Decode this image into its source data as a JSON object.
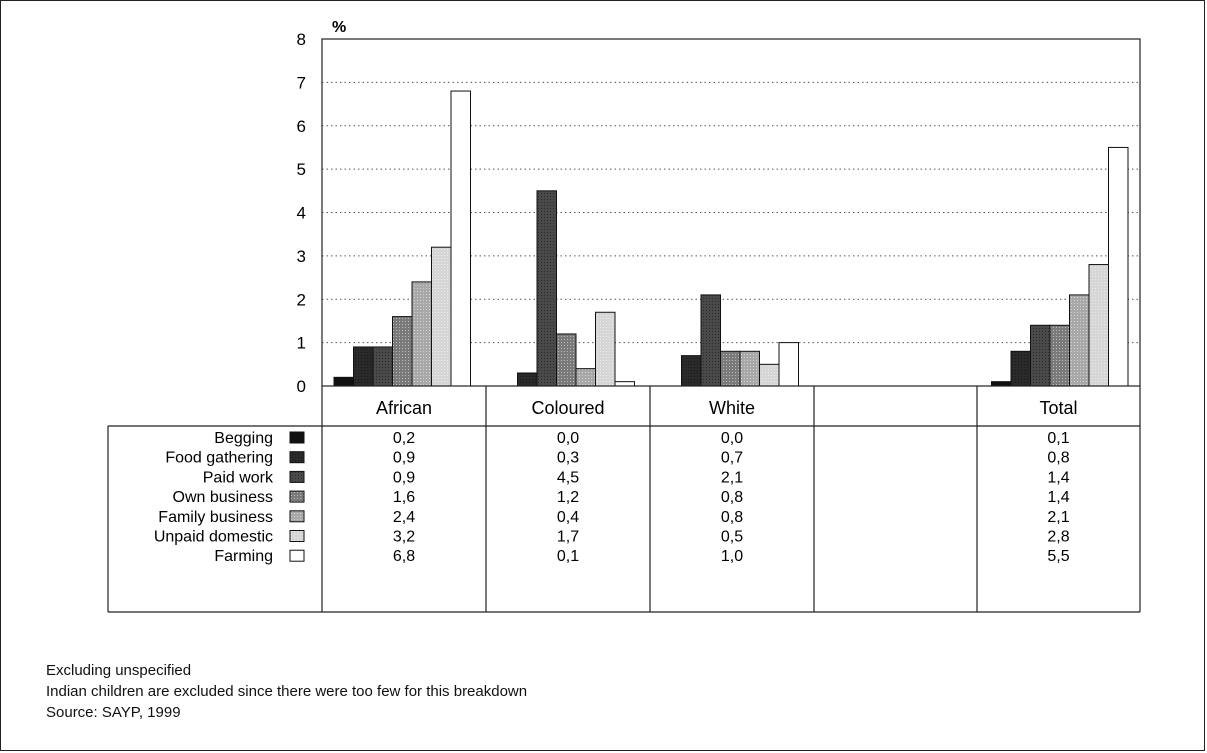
{
  "chart_data": {
    "type": "bar",
    "ylabel": "%",
    "ylim": [
      0,
      8
    ],
    "yticks": [
      "0",
      "1",
      "2",
      "3",
      "4",
      "5",
      "6",
      "7",
      "8"
    ],
    "grid": "horizontal dotted",
    "categories": [
      "African",
      "Coloured",
      "White",
      "",
      "Total"
    ],
    "series": [
      {
        "name": "Begging",
        "color": "#111111",
        "values": [
          0.2,
          0.0,
          0.0,
          null,
          0.1
        ],
        "labels": [
          "0,2",
          "0,0",
          "0,0",
          "",
          "0,1"
        ]
      },
      {
        "name": "Food gathering",
        "color": "#2a2a2a",
        "values": [
          0.9,
          0.3,
          0.7,
          null,
          0.8
        ],
        "labels": [
          "0,9",
          "0,3",
          "0,7",
          "",
          "0,8"
        ]
      },
      {
        "name": "Paid work",
        "color": "#4a4a4a",
        "values": [
          0.9,
          4.5,
          2.1,
          null,
          1.4
        ],
        "labels": [
          "0,9",
          "4,5",
          "2,1",
          "",
          "1,4"
        ]
      },
      {
        "name": "Own business",
        "color": "#7a7a7a",
        "values": [
          1.6,
          1.2,
          0.8,
          null,
          1.4
        ],
        "labels": [
          "1,6",
          "1,2",
          "0,8",
          "",
          "1,4"
        ]
      },
      {
        "name": "Family business",
        "color": "#a8a8a8",
        "values": [
          2.4,
          0.4,
          0.8,
          null,
          2.1
        ],
        "labels": [
          "2,4",
          "0,4",
          "0,8",
          "",
          "2,1"
        ]
      },
      {
        "name": "Unpaid domestic",
        "color": "#d6d6d6",
        "values": [
          3.2,
          1.7,
          0.5,
          null,
          2.8
        ],
        "labels": [
          "3,2",
          "1,7",
          "0,5",
          "",
          "2,8"
        ]
      },
      {
        "name": "Farming",
        "color": "#ffffff",
        "values": [
          6.8,
          0.1,
          1.0,
          null,
          5.5
        ],
        "labels": [
          "6,8",
          "0,1",
          "1,0",
          "",
          "5,5"
        ]
      }
    ]
  },
  "notes": {
    "line1": "Excluding unspecified",
    "line2": "Indian children are excluded since there were too few for this breakdown",
    "line3": "Source: SAYP, 1999"
  }
}
